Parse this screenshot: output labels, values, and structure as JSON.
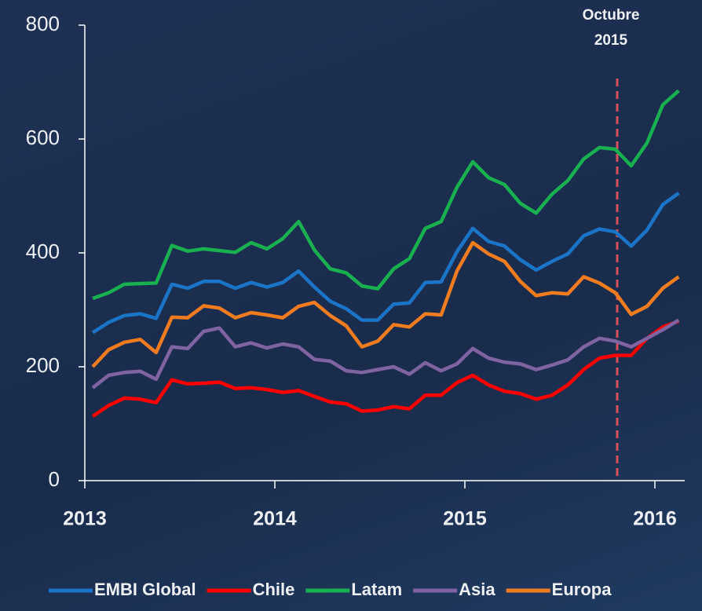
{
  "chart_data": {
    "type": "line",
    "annotation_lines": [
      "Octubre",
      "2015"
    ],
    "categories": [
      "2013",
      null,
      null,
      null,
      null,
      null,
      null,
      null,
      null,
      null,
      null,
      null,
      "2014",
      null,
      null,
      null,
      null,
      null,
      null,
      null,
      null,
      null,
      null,
      null,
      "2015",
      null,
      null,
      null,
      null,
      null,
      null,
      null,
      null,
      null,
      null,
      null,
      "2016",
      null
    ],
    "ylim": [
      0,
      800
    ],
    "yticks": [
      0,
      200,
      400,
      600,
      800
    ],
    "series": [
      {
        "name": "EMBI Global",
        "color": "#1a75c9",
        "values": [
          260,
          278,
          290,
          293,
          285,
          345,
          338,
          350,
          350,
          338,
          348,
          340,
          348,
          368,
          340,
          315,
          302,
          282,
          282,
          310,
          312,
          348,
          349,
          402,
          443,
          420,
          412,
          388,
          370,
          385,
          398,
          430,
          442,
          437,
          412,
          440,
          485,
          505
        ]
      },
      {
        "name": "Chile",
        "color": "#ff0000",
        "values": [
          113,
          132,
          145,
          143,
          137,
          177,
          170,
          171,
          173,
          162,
          163,
          160,
          155,
          158,
          148,
          138,
          135,
          122,
          124,
          130,
          126,
          150,
          150,
          172,
          185,
          168,
          157,
          153,
          143,
          150,
          168,
          195,
          215,
          220,
          220,
          250,
          270,
          280
        ]
      },
      {
        "name": "Latam",
        "color": "#19b050",
        "values": [
          320,
          330,
          345,
          346,
          347,
          413,
          403,
          407,
          404,
          401,
          418,
          407,
          425,
          455,
          405,
          372,
          365,
          342,
          337,
          372,
          390,
          443,
          455,
          515,
          560,
          532,
          520,
          487,
          470,
          503,
          527,
          565,
          585,
          582,
          553,
          593,
          660,
          685
        ]
      },
      {
        "name": "Asia",
        "color": "#8064a2",
        "values": [
          163,
          185,
          190,
          192,
          178,
          235,
          232,
          262,
          268,
          235,
          242,
          233,
          240,
          235,
          213,
          210,
          193,
          190,
          195,
          200,
          187,
          207,
          193,
          205,
          232,
          215,
          208,
          205,
          195,
          203,
          212,
          235,
          250,
          245,
          235,
          250,
          265,
          282
        ]
      },
      {
        "name": "Europa",
        "color": "#f07c1f",
        "values": [
          200,
          230,
          243,
          248,
          225,
          287,
          286,
          307,
          303,
          286,
          295,
          291,
          286,
          306,
          313,
          290,
          272,
          235,
          245,
          274,
          270,
          293,
          291,
          368,
          418,
          398,
          385,
          350,
          325,
          330,
          328,
          358,
          347,
          330,
          292,
          306,
          338,
          358
        ]
      }
    ]
  }
}
